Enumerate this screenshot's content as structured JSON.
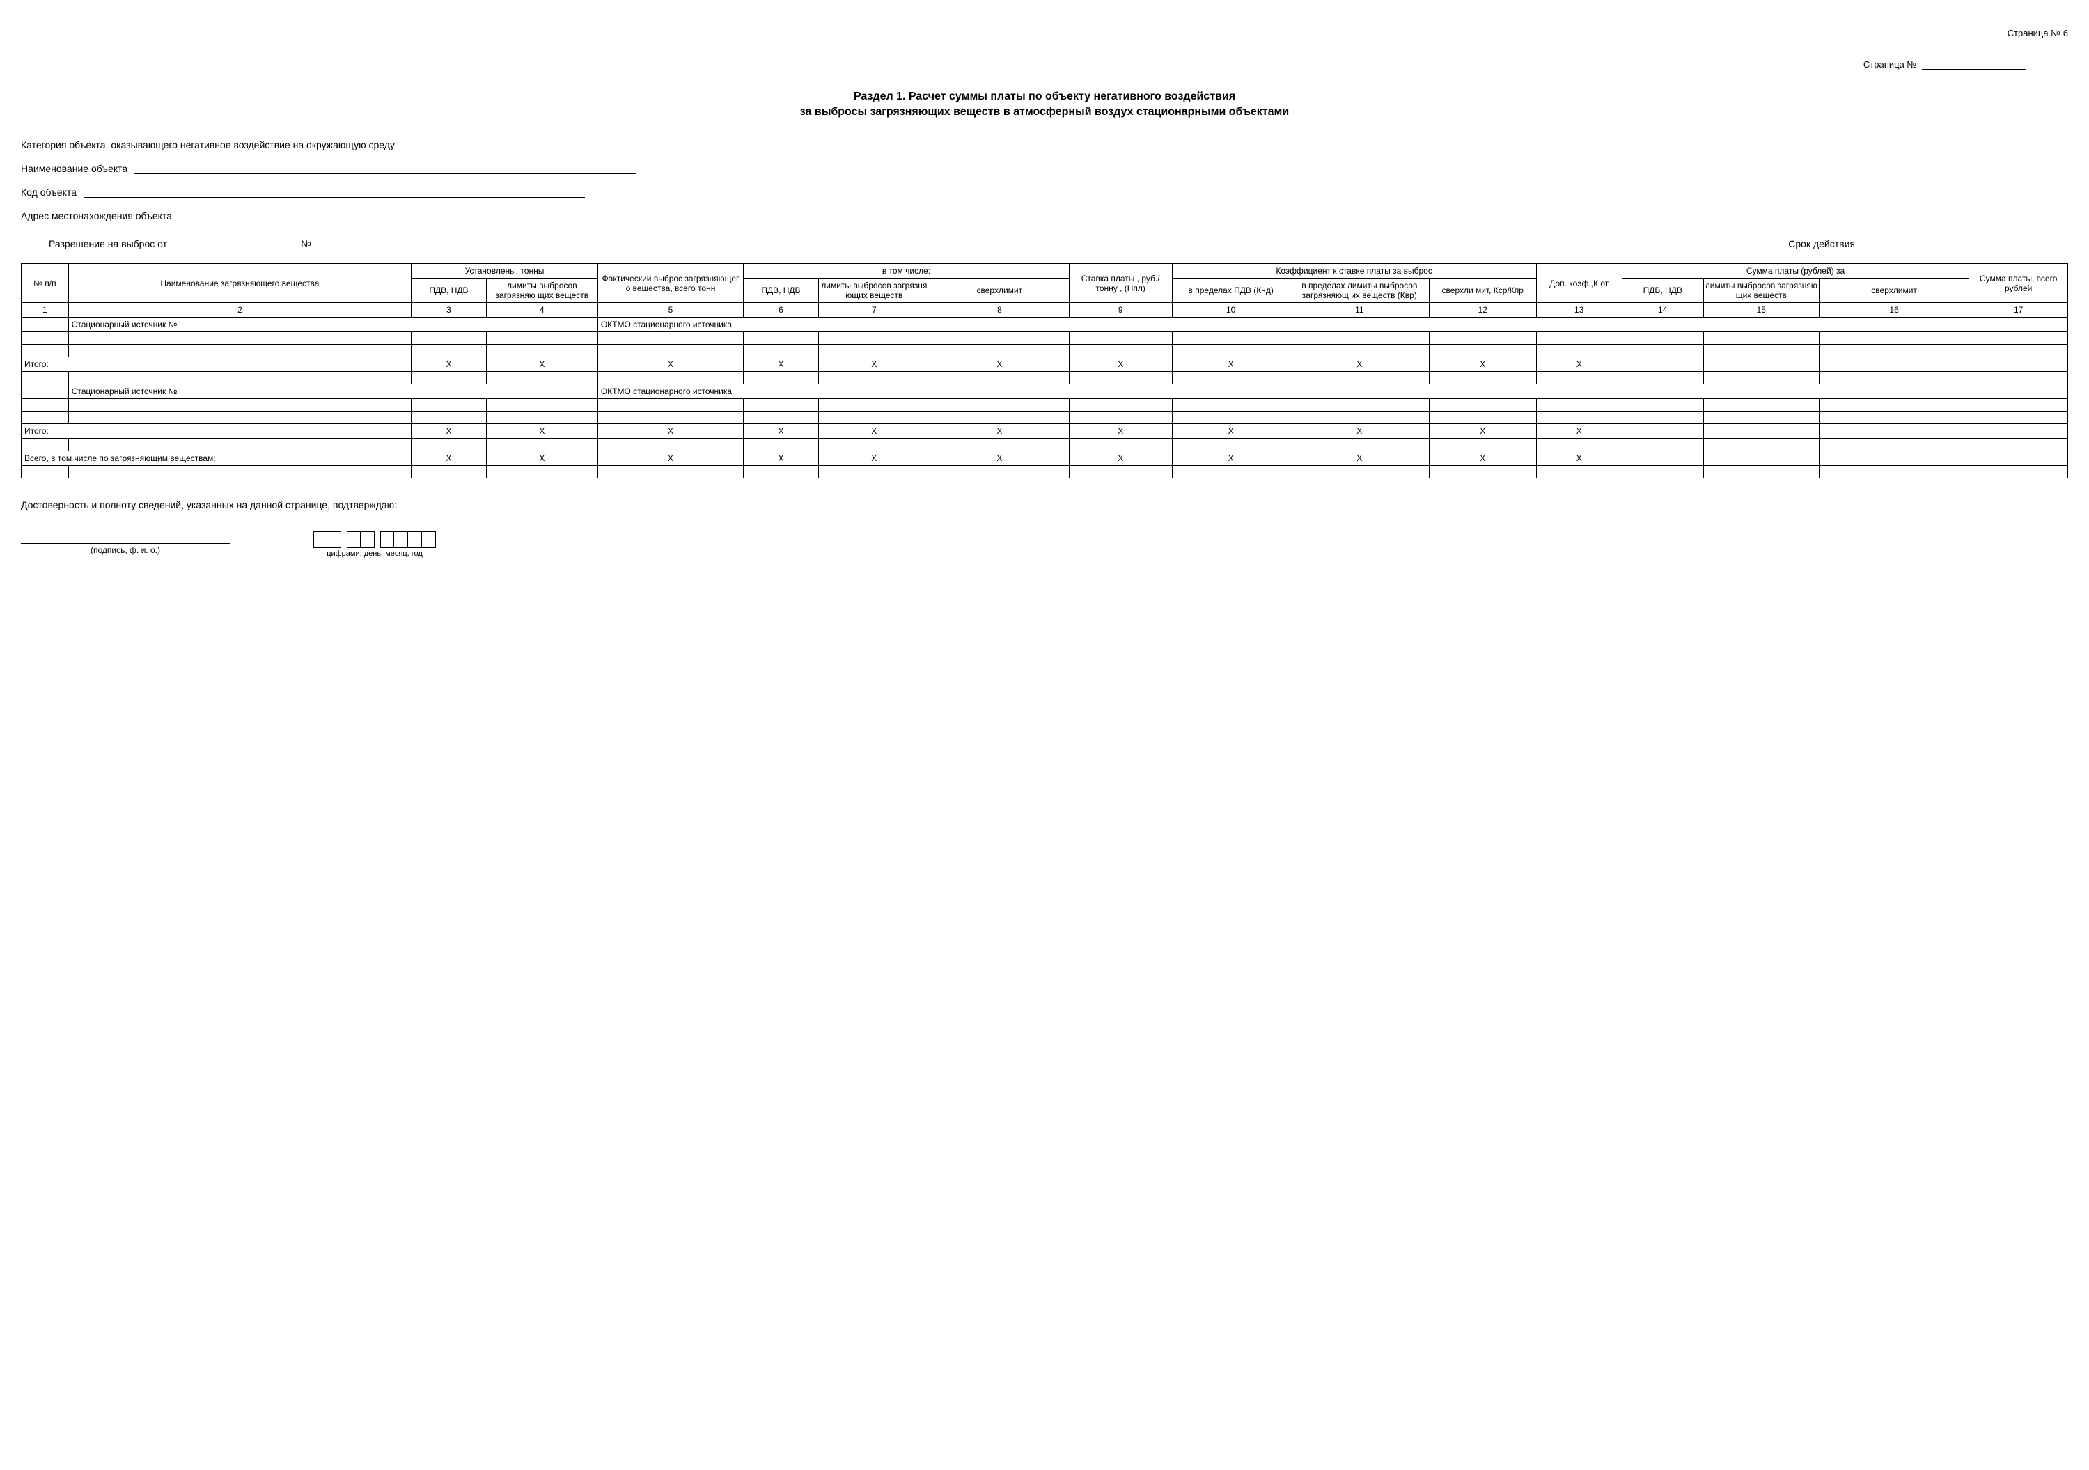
{
  "page_top": "Страница № 6",
  "page_label": "Страница №",
  "title1": "Раздел 1. Расчет суммы платы по объекту негативного воздействия",
  "title2": "за выбросы загрязняющих веществ в атмосферный воздух стационарными объектами",
  "fields": {
    "category": "Категория объекта, оказывающего негативное воздействие на окружающую среду",
    "name": "Наименование объекта",
    "code": "Код объекта",
    "address": "Адрес местонахождения объекта"
  },
  "permit": {
    "label1": "Разрешение на выброс от",
    "num": "№",
    "term": "Срок действия"
  },
  "headers": {
    "c1": "№ п/п",
    "c2": "Наименование загрязняющего вещества",
    "c3g": "Установлены, тонны",
    "c3": "ПДВ, НДВ",
    "c4": "лимиты выбросов загрязняю щих веществ",
    "c5": "Фактический выброс загрязняющег о вещества, всего тонн",
    "c6g": "в том числе:",
    "c6": "ПДВ, НДВ",
    "c7": "лимиты выбросов загрязня ющих веществ",
    "c8": "сверхлимит",
    "c9": "Ставка платы , руб./тонну , (Нпл)",
    "c10g": "Коэффициент к ставке платы за выброс",
    "c10": "в пределах ПДВ (Кнд)",
    "c11": "в пределах лимиты выбросов загрязняющ их веществ (Квр)",
    "c12": "сверхли мит, Кср/Кпр",
    "c13": "Доп. коэф.,К от",
    "c14g": "Сумма платы (рублей) за",
    "c14": "ПДВ, НДВ",
    "c15": "лимиты выбросов загрязняю щих веществ",
    "c16": "сверхлимит",
    "c17": "Сумма платы, всего рублей"
  },
  "nums": [
    "1",
    "2",
    "3",
    "4",
    "5",
    "6",
    "7",
    "8",
    "9",
    "10",
    "11",
    "12",
    "13",
    "14",
    "15",
    "16",
    "17"
  ],
  "rows": {
    "src": "Стационарный источник №",
    "oktmo": "ОКТМО стационарного источника",
    "itogo": "Итого:",
    "total": "Всего,  в том числе по загрязняющим веществам:",
    "x": "X"
  },
  "footer": {
    "confirm": "Достоверность и полноту сведений, указанных на данной странице, подтверждаю:",
    "sig": "(подпись, ф. и. о.)",
    "date": "цифрами: день, месяц, год"
  },
  "colwidths": [
    "2.2%",
    "16%",
    "3.5%",
    "5.2%",
    "6.8%",
    "3.5%",
    "5.2%",
    "6.5%",
    "4.8%",
    "5.5%",
    "6.5%",
    "5%",
    "4%",
    "3.8%",
    "5.4%",
    "7%",
    "4.6%"
  ]
}
